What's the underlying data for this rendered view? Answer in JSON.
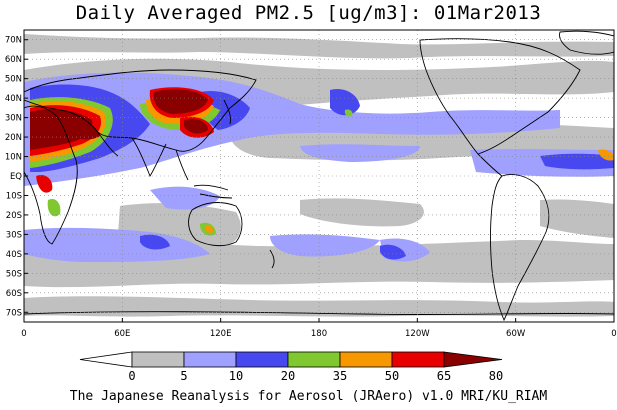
{
  "title": "Daily Averaged PM2.5 [ug/m3]: 01Mar2013",
  "footer": "The Japanese Reanalysis for Aerosol (JRAero) v1.0 MRI/KU_RIAM",
  "map": {
    "projection": "equirectangular, centered 180",
    "lon_range": [
      0,
      360
    ],
    "lat_range": [
      -75,
      75
    ],
    "lon_ticks": [
      {
        "lon": 0,
        "label": "0"
      },
      {
        "lon": 60,
        "label": "60E"
      },
      {
        "lon": 120,
        "label": "120E"
      },
      {
        "lon": 180,
        "label": "180"
      },
      {
        "lon": 240,
        "label": "120W"
      },
      {
        "lon": 300,
        "label": "60W"
      },
      {
        "lon": 360,
        "label": "0"
      }
    ],
    "lat_ticks": [
      {
        "lat": 70,
        "label": "70N"
      },
      {
        "lat": 60,
        "label": "60N"
      },
      {
        "lat": 50,
        "label": "50N"
      },
      {
        "lat": 40,
        "label": "40N"
      },
      {
        "lat": 30,
        "label": "30N"
      },
      {
        "lat": 20,
        "label": "20N"
      },
      {
        "lat": 10,
        "label": "10N"
      },
      {
        "lat": 0,
        "label": "EQ"
      },
      {
        "lat": -10,
        "label": "10S"
      },
      {
        "lat": -20,
        "label": "20S"
      },
      {
        "lat": -30,
        "label": "30S"
      },
      {
        "lat": -40,
        "label": "40S"
      },
      {
        "lat": -50,
        "label": "50S"
      },
      {
        "lat": -60,
        "label": "60S"
      },
      {
        "lat": -70,
        "label": "70S"
      }
    ],
    "colors": {
      "ocean_background": "#ffffff",
      "grid": "#888888",
      "coast": "#000000"
    }
  },
  "legend": {
    "levels": [
      "0",
      "5",
      "10",
      "20",
      "35",
      "50",
      "65",
      "80"
    ],
    "colors": [
      "#ffffff",
      "#c0c0c0",
      "#a0a0ff",
      "#4848f0",
      "#80c830",
      "#f89800",
      "#e80000",
      "#8a0000"
    ]
  }
}
